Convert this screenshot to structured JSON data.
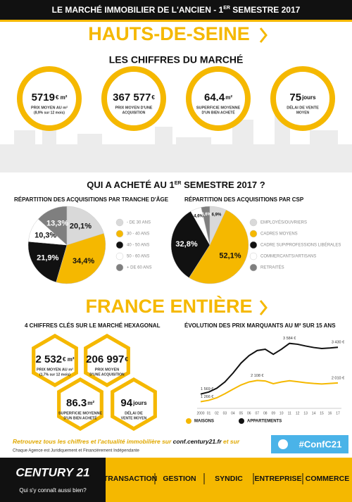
{
  "header": {
    "title_parts": [
      "LE MARCHÉ IMMOBILIER DE L'ANCIEN - 1",
      "ER",
      " SEMESTRE 2017"
    ]
  },
  "region": {
    "title": "HAUTS-DE-SEINE",
    "subtitle": "LES CHIFFRES DU MARCHÉ",
    "stats": [
      {
        "value": "5719",
        "unit": "€ m²",
        "label": [
          "PRIX MOYEN AU m²",
          "(8,9% sur 12 mois)"
        ]
      },
      {
        "value": "367 577",
        "unit": "€",
        "label": [
          "PRIX MOYEN D'UNE",
          "ACQUISITION"
        ]
      },
      {
        "value": "64.4",
        "unit": "m²",
        "label": [
          "SUPERFICIE MOYENNE",
          "D'UN BIEN ACHETÉ"
        ]
      },
      {
        "value": "75",
        "unit": "jours",
        "label": [
          "DÉLAI DE VENTE",
          "MOYEN"
        ]
      }
    ]
  },
  "buyers": {
    "title_parts": [
      "QUI A ACHETÉ AU 1",
      "ER",
      " SEMESTRE 2017 ?"
    ]
  },
  "chart_data": [
    {
      "type": "pie",
      "title": "RÉPARTITION DES ACQUISITIONS PAR TRANCHE D'ÂGE",
      "categories": [
        "- DE 30 ANS",
        "30 - 40 ANS",
        "40 - 50 ANS",
        "50 - 60 ANS",
        "+ DE 60 ANS"
      ],
      "values": [
        20.1,
        34.4,
        21.9,
        10.3,
        13.3
      ],
      "value_labels": [
        "20,1%",
        "34,4%",
        "21,9%",
        "10,3%",
        "13,3%"
      ],
      "colors": [
        "#d9d9d9",
        "#f5b800",
        "#111111",
        "#ffffff",
        "#7f7f7f"
      ]
    },
    {
      "type": "pie",
      "title": "RÉPARTITION DES ACQUISITIONS PAR CSP",
      "categories": [
        "EMPLOYÉS/OUVRIERS",
        "CADRES MOYENS",
        "CADRE SUP/PROFESSIONS LIBÉRALES",
        "COMMERCANTS/ARTISANS",
        "RETRAITÉS"
      ],
      "values": [
        6.9,
        52.1,
        32.8,
        4.6,
        3.6
      ],
      "value_labels": [
        "6,9%",
        "52,1%",
        "32,8%",
        "4,6%",
        "3,6%"
      ],
      "colors": [
        "#d9d9d9",
        "#f5b800",
        "#111111",
        "#ffffff",
        "#7f7f7f"
      ]
    },
    {
      "type": "line",
      "title": "ÉVOLUTION DES PRIX MARQUANTS AU M² SUR 15 ANS",
      "categories": [
        "2000",
        "01",
        "02",
        "03",
        "04",
        "05",
        "06",
        "07",
        "08",
        "09",
        "10",
        "11",
        "12",
        "13",
        "14",
        "15",
        "16",
        "17"
      ],
      "ylim": [
        1000,
        3800
      ],
      "series": [
        {
          "name": "MAISONS",
          "color": "#f5b800",
          "values": [
            1266,
            1320,
            1420,
            1580,
            1760,
            1930,
            2050,
            2108,
            2090,
            1980,
            2050,
            2100,
            2060,
            2020,
            1990,
            1970,
            1990,
            2010
          ],
          "value_labels": [
            "1 266 €",
            null,
            null,
            null,
            null,
            null,
            null,
            "2 108 €",
            null,
            null,
            null,
            null,
            null,
            null,
            null,
            null,
            null,
            "2 010 €"
          ]
        },
        {
          "name": "APPARTEMENTS",
          "color": "#111111",
          "values": [
            1569,
            1650,
            1800,
            2050,
            2400,
            2800,
            3100,
            3300,
            3350,
            3150,
            3350,
            3584,
            3550,
            3480,
            3420,
            3380,
            3400,
            3430
          ],
          "value_labels": [
            "1 569 €",
            null,
            null,
            null,
            null,
            null,
            null,
            null,
            null,
            null,
            null,
            "3 584 €",
            null,
            null,
            null,
            null,
            null,
            "3 430 €"
          ]
        }
      ]
    }
  ],
  "france": {
    "title": "FRANCE ENTIÈRE",
    "subtitle": "4 CHIFFRES CLÉS SUR LE MARCHÉ HEXAGONAL",
    "stats": [
      {
        "value": "2 532",
        "unit": "€ m²",
        "label": [
          "PRIX MOYEN AU m²",
          "(1,7% sur 12 mois)"
        ]
      },
      {
        "value": "206 997",
        "unit": "€",
        "label": [
          "PRIX MOYEN",
          "D'UNE ACQUISITION"
        ]
      },
      {
        "value": "86.3",
        "unit": "m²",
        "label": [
          "SUPERFICIE MOYENNE",
          "D'UN BIEN ACHETÉ"
        ]
      },
      {
        "value": "94",
        "unit": "jours",
        "label": [
          "DÉLAI DE",
          "VENTE MOYEN"
        ]
      }
    ]
  },
  "footer": {
    "promo_parts": [
      "Retrouvez tous les chiffres et l'actualité immobilière sur ",
      "conf.century21.fr",
      " et sur"
    ],
    "disclaimer": "Chaque Agence est Juridiquement et Financièrement Indépendante",
    "hashtag": "#ConfC21",
    "brand": "CENTURY 21",
    "tagline": "Qui s'y connaît aussi bien?",
    "nav": [
      "TRANSACTION",
      "GESTION",
      "SYNDIC",
      "ENTREPRISE",
      "COMMERCE"
    ]
  }
}
